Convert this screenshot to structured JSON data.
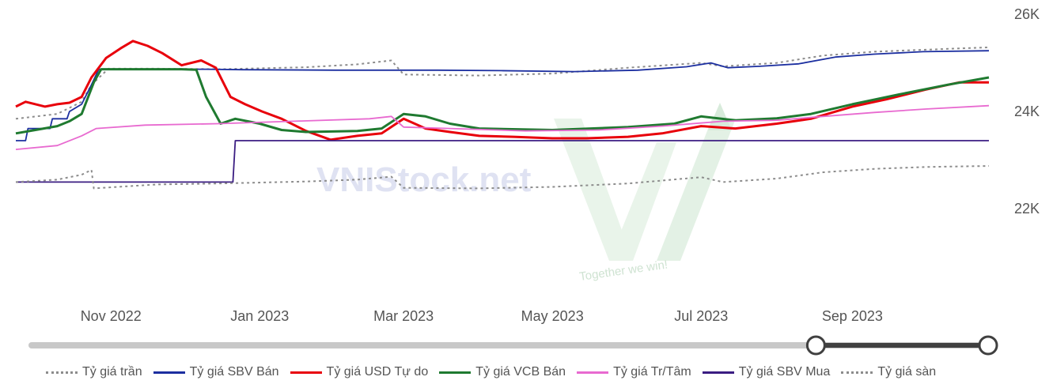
{
  "chart_data": {
    "type": "line",
    "title": "",
    "xlabel": "",
    "ylabel": "",
    "ylim": [
      20200,
      26000
    ],
    "yticks": [
      22000,
      24000,
      26000
    ],
    "ytick_labels": [
      "22K",
      "24K",
      "26K"
    ],
    "x_range": [
      "2022-09-23",
      "2023-10-27"
    ],
    "xtick_dates": [
      "2022-11-01",
      "2023-01-01",
      "2023-03-01",
      "2023-05-01",
      "2023-07-01",
      "2023-09-01"
    ],
    "xtick_labels": [
      "Nov 2022",
      "Jan 2023",
      "Mar 2023",
      "May 2023",
      "Jul 2023",
      "Sep 2023"
    ],
    "grid": false,
    "legend_position": "bottom",
    "range_slider": {
      "start_fraction": 0.82,
      "end_fraction": 1.0
    },
    "watermark": {
      "text": "VNIStock.net",
      "tagline": "Together we win!"
    },
    "series": [
      {
        "name": "Tỷ giá trần",
        "color": "#8c8c8c",
        "dash": "dotted",
        "points": [
          [
            "2022-09-23",
            23850
          ],
          [
            "2022-10-10",
            23950
          ],
          [
            "2022-10-20",
            24200
          ],
          [
            "2022-10-24",
            24550
          ],
          [
            "2022-10-31",
            24880
          ],
          [
            "2022-11-20",
            24880
          ],
          [
            "2022-12-15",
            24870
          ],
          [
            "2023-01-20",
            24910
          ],
          [
            "2023-02-10",
            24970
          ],
          [
            "2023-02-24",
            25050
          ],
          [
            "2023-03-01",
            24760
          ],
          [
            "2023-04-01",
            24740
          ],
          [
            "2023-05-01",
            24780
          ],
          [
            "2023-06-01",
            24900
          ],
          [
            "2023-07-01",
            25000
          ],
          [
            "2023-07-10",
            24930
          ],
          [
            "2023-08-01",
            25000
          ],
          [
            "2023-08-20",
            25150
          ],
          [
            "2023-09-10",
            25230
          ],
          [
            "2023-10-01",
            25270
          ],
          [
            "2023-10-27",
            25320
          ]
        ]
      },
      {
        "name": "Tỷ giá SBV Bán",
        "color": "#1c2fa0",
        "dash": "solid",
        "points": [
          [
            "2022-09-23",
            23400
          ],
          [
            "2022-09-27",
            23400
          ],
          [
            "2022-09-28",
            23650
          ],
          [
            "2022-10-07",
            23650
          ],
          [
            "2022-10-08",
            23850
          ],
          [
            "2022-10-14",
            23850
          ],
          [
            "2022-10-15",
            24000
          ],
          [
            "2022-10-20",
            24150
          ],
          [
            "2022-10-24",
            24550
          ],
          [
            "2022-10-27",
            24870
          ],
          [
            "2022-12-10",
            24870
          ],
          [
            "2022-12-25",
            24860
          ],
          [
            "2023-02-01",
            24850
          ],
          [
            "2023-03-15",
            24850
          ],
          [
            "2023-04-10",
            24840
          ],
          [
            "2023-05-10",
            24820
          ],
          [
            "2023-06-05",
            24850
          ],
          [
            "2023-06-25",
            24920
          ],
          [
            "2023-07-05",
            25000
          ],
          [
            "2023-07-12",
            24900
          ],
          [
            "2023-07-25",
            24930
          ],
          [
            "2023-08-10",
            24980
          ],
          [
            "2023-08-25",
            25120
          ],
          [
            "2023-09-10",
            25180
          ],
          [
            "2023-09-30",
            25230
          ],
          [
            "2023-10-27",
            25250
          ]
        ]
      },
      {
        "name": "Tỷ giá USD Tự do",
        "color": "#e8000b",
        "dash": "solid",
        "points": [
          [
            "2022-09-23",
            24100
          ],
          [
            "2022-09-27",
            24200
          ],
          [
            "2022-10-05",
            24100
          ],
          [
            "2022-10-10",
            24150
          ],
          [
            "2022-10-15",
            24180
          ],
          [
            "2022-10-20",
            24300
          ],
          [
            "2022-10-24",
            24700
          ],
          [
            "2022-10-30",
            25100
          ],
          [
            "2022-11-05",
            25300
          ],
          [
            "2022-11-10",
            25450
          ],
          [
            "2022-11-16",
            25350
          ],
          [
            "2022-11-22",
            25200
          ],
          [
            "2022-11-30",
            24950
          ],
          [
            "2022-12-08",
            25050
          ],
          [
            "2022-12-14",
            24900
          ],
          [
            "2022-12-20",
            24300
          ],
          [
            "2022-12-26",
            24150
          ],
          [
            "2023-01-02",
            24000
          ],
          [
            "2023-01-10",
            23850
          ],
          [
            "2023-01-20",
            23600
          ],
          [
            "2023-01-30",
            23420
          ],
          [
            "2023-02-10",
            23500
          ],
          [
            "2023-02-20",
            23550
          ],
          [
            "2023-03-01",
            23850
          ],
          [
            "2023-03-10",
            23650
          ],
          [
            "2023-03-20",
            23580
          ],
          [
            "2023-04-01",
            23500
          ],
          [
            "2023-04-15",
            23480
          ],
          [
            "2023-05-01",
            23450
          ],
          [
            "2023-05-15",
            23450
          ],
          [
            "2023-06-01",
            23480
          ],
          [
            "2023-06-15",
            23550
          ],
          [
            "2023-07-01",
            23700
          ],
          [
            "2023-07-15",
            23650
          ],
          [
            "2023-08-01",
            23750
          ],
          [
            "2023-08-15",
            23850
          ],
          [
            "2023-09-01",
            24100
          ],
          [
            "2023-09-15",
            24250
          ],
          [
            "2023-10-01",
            24450
          ],
          [
            "2023-10-15",
            24600
          ],
          [
            "2023-10-27",
            24600
          ]
        ]
      },
      {
        "name": "Tỷ giá VCB Bán",
        "color": "#1f7a30",
        "dash": "solid",
        "points": [
          [
            "2022-09-23",
            23550
          ],
          [
            "2022-10-01",
            23620
          ],
          [
            "2022-10-10",
            23700
          ],
          [
            "2022-10-15",
            23800
          ],
          [
            "2022-10-20",
            23950
          ],
          [
            "2022-10-25",
            24600
          ],
          [
            "2022-10-28",
            24870
          ],
          [
            "2022-11-30",
            24870
          ],
          [
            "2022-12-06",
            24860
          ],
          [
            "2022-12-10",
            24300
          ],
          [
            "2022-12-16",
            23750
          ],
          [
            "2022-12-22",
            23850
          ],
          [
            "2023-01-01",
            23750
          ],
          [
            "2023-01-10",
            23620
          ],
          [
            "2023-01-20",
            23580
          ],
          [
            "2023-02-10",
            23600
          ],
          [
            "2023-02-20",
            23650
          ],
          [
            "2023-03-01",
            23950
          ],
          [
            "2023-03-10",
            23900
          ],
          [
            "2023-03-20",
            23750
          ],
          [
            "2023-04-01",
            23650
          ],
          [
            "2023-05-01",
            23620
          ],
          [
            "2023-06-01",
            23680
          ],
          [
            "2023-06-20",
            23750
          ],
          [
            "2023-07-01",
            23900
          ],
          [
            "2023-07-15",
            23820
          ],
          [
            "2023-08-01",
            23860
          ],
          [
            "2023-08-15",
            23950
          ],
          [
            "2023-09-01",
            24150
          ],
          [
            "2023-09-20",
            24350
          ],
          [
            "2023-10-10",
            24550
          ],
          [
            "2023-10-27",
            24700
          ]
        ]
      },
      {
        "name": "Tỷ giá Tr/Tâm",
        "color": "#e86ad0",
        "dash": "solid",
        "points": [
          [
            "2022-09-23",
            23220
          ],
          [
            "2022-10-10",
            23300
          ],
          [
            "2022-10-20",
            23500
          ],
          [
            "2022-10-26",
            23650
          ],
          [
            "2022-11-15",
            23720
          ],
          [
            "2022-12-15",
            23750
          ],
          [
            "2023-01-15",
            23800
          ],
          [
            "2023-02-15",
            23850
          ],
          [
            "2023-02-24",
            23900
          ],
          [
            "2023-03-01",
            23680
          ],
          [
            "2023-03-20",
            23650
          ],
          [
            "2023-04-20",
            23600
          ],
          [
            "2023-05-20",
            23620
          ],
          [
            "2023-06-15",
            23700
          ],
          [
            "2023-07-10",
            23800
          ],
          [
            "2023-08-01",
            23820
          ],
          [
            "2023-08-20",
            23900
          ],
          [
            "2023-09-10",
            23980
          ],
          [
            "2023-10-01",
            24050
          ],
          [
            "2023-10-27",
            24120
          ]
        ]
      },
      {
        "name": "Tỷ giá SBV Mua",
        "color": "#3b1d82",
        "dash": "solid",
        "points": [
          [
            "2022-09-23",
            22550
          ],
          [
            "2022-12-21",
            22550
          ],
          [
            "2022-12-22",
            23400
          ],
          [
            "2023-10-27",
            23400
          ]
        ]
      },
      {
        "name": "Tỷ giá sàn",
        "color": "#8c8c8c",
        "dash": "dotted",
        "points": [
          [
            "2022-09-23",
            22550
          ],
          [
            "2022-10-10",
            22600
          ],
          [
            "2022-10-20",
            22700
          ],
          [
            "2022-10-24",
            22800
          ],
          [
            "2022-10-25",
            22420
          ],
          [
            "2022-11-20",
            22500
          ],
          [
            "2022-12-15",
            22520
          ],
          [
            "2023-01-20",
            22560
          ],
          [
            "2023-02-10",
            22600
          ],
          [
            "2023-02-24",
            22660
          ],
          [
            "2023-03-01",
            22430
          ],
          [
            "2023-04-01",
            22420
          ],
          [
            "2023-05-01",
            22450
          ],
          [
            "2023-06-01",
            22520
          ],
          [
            "2023-07-01",
            22650
          ],
          [
            "2023-07-10",
            22550
          ],
          [
            "2023-08-01",
            22620
          ],
          [
            "2023-08-20",
            22750
          ],
          [
            "2023-09-10",
            22820
          ],
          [
            "2023-10-01",
            22860
          ],
          [
            "2023-10-27",
            22880
          ]
        ]
      }
    ]
  }
}
